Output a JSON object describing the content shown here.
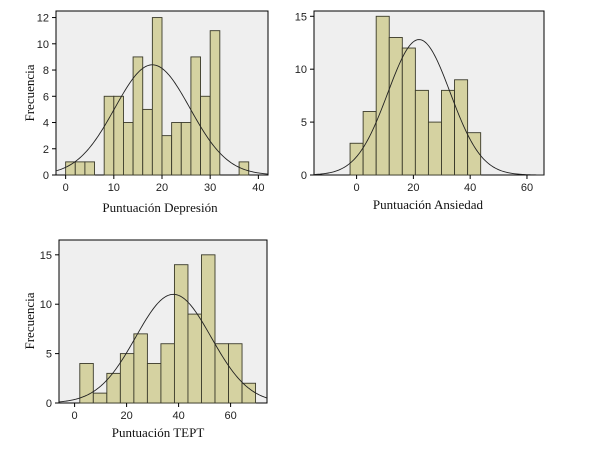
{
  "colors": {
    "bar_fill": "#d5d2a1",
    "bar_stroke": "#3a3a2a",
    "plot_bg": "#efefef",
    "curve": "#222222"
  },
  "chart_data": [
    {
      "type": "bar",
      "title": "",
      "xlabel": "Puntuación Depresión",
      "ylabel": "Frecuencia",
      "xlim": [
        -2,
        42
      ],
      "ylim": [
        0,
        12.5
      ],
      "xticks": [
        0,
        10,
        20,
        30,
        40
      ],
      "yticks": [
        0,
        2,
        4,
        6,
        8,
        10,
        12
      ],
      "bin_width": 2,
      "bin_start": 0,
      "values": [
        1,
        1,
        1,
        0,
        6,
        6,
        4,
        9,
        5,
        12,
        3,
        4,
        4,
        9,
        6,
        11,
        0,
        0,
        1
      ],
      "normal_curve": {
        "mean": 18,
        "sd": 7.8,
        "peak": 8.4
      },
      "grid": false
    },
    {
      "type": "bar",
      "title": "",
      "xlabel": "Puntuación Ansiedad",
      "ylabel": "",
      "xlim": [
        -15,
        66
      ],
      "ylim": [
        0,
        15.5
      ],
      "xticks": [
        0,
        20,
        40,
        60
      ],
      "yticks": [
        0,
        5,
        10,
        15
      ],
      "bin_width": 4.6,
      "bin_start": -2.3,
      "values": [
        3,
        6,
        15,
        13,
        12,
        8,
        5,
        8,
        9,
        4
      ],
      "normal_curve": {
        "mean": 22,
        "sd": 11,
        "peak": 12.8
      },
      "grid": false
    },
    {
      "type": "bar",
      "title": "",
      "xlabel": "Puntuación TEPT",
      "ylabel": "Frecuencia",
      "xlim": [
        -6,
        74
      ],
      "ylim": [
        0,
        16.5
      ],
      "xticks": [
        0,
        20,
        40,
        60
      ],
      "yticks": [
        0,
        5,
        10,
        15
      ],
      "bin_width": 5.2,
      "bin_start": 2,
      "values": [
        4,
        1,
        3,
        5,
        7,
        4,
        6,
        14,
        9,
        15,
        6,
        6,
        2
      ],
      "normal_curve": {
        "mean": 38,
        "sd": 14.5,
        "peak": 11
      },
      "grid": false
    }
  ]
}
